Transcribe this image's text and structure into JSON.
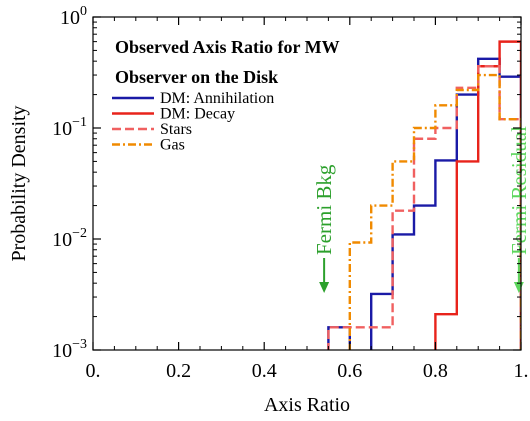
{
  "chart_data": {
    "type": "step-histogram",
    "title_lines": [
      "Observed Axis Ratio for MW",
      "Observer on the Disk"
    ],
    "xlabel": "Axis Ratio",
    "ylabel": "Probability Density",
    "xlim": [
      0,
      1
    ],
    "ylim": [
      0.001,
      1
    ],
    "yscale": "log",
    "grid": false,
    "legend_position": "top-left",
    "x_ticks": [
      {
        "value": 0,
        "label": "0."
      },
      {
        "value": 0.2,
        "label": "0.2"
      },
      {
        "value": 0.4,
        "label": "0.4"
      },
      {
        "value": 0.6,
        "label": "0.6"
      },
      {
        "value": 0.8,
        "label": "0.8"
      },
      {
        "value": 1,
        "label": "1."
      }
    ],
    "y_ticks": [
      {
        "value": 0.001,
        "base": "10",
        "exp": "−3"
      },
      {
        "value": 0.01,
        "base": "10",
        "exp": "−2"
      },
      {
        "value": 0.1,
        "base": "10",
        "exp": "−1"
      },
      {
        "value": 1,
        "base": "10",
        "exp": "0"
      }
    ],
    "series": [
      {
        "name": "DM: Annihilation",
        "color": "#1a1aa6",
        "dash": "solid",
        "bins": [
          {
            "x0": 0.55,
            "x1": 0.6,
            "y": 0.0016
          },
          {
            "x0": 0.65,
            "x1": 0.7,
            "y": 0.0032
          },
          {
            "x0": 0.7,
            "x1": 0.75,
            "y": 0.011
          },
          {
            "x0": 0.75,
            "x1": 0.8,
            "y": 0.02
          },
          {
            "x0": 0.8,
            "x1": 0.85,
            "y": 0.051
          },
          {
            "x0": 0.85,
            "x1": 0.9,
            "y": 0.2
          },
          {
            "x0": 0.9,
            "x1": 0.95,
            "y": 0.42
          },
          {
            "x0": 0.95,
            "x1": 1.0,
            "y": 0.29
          }
        ]
      },
      {
        "name": "DM: Decay",
        "color": "#e8231b",
        "dash": "solid",
        "bins": [
          {
            "x0": 0.8,
            "x1": 0.85,
            "y": 0.0021
          },
          {
            "x0": 0.85,
            "x1": 0.9,
            "y": 0.05
          },
          {
            "x0": 0.9,
            "x1": 0.95,
            "y": 0.36
          },
          {
            "x0": 0.95,
            "x1": 1.0,
            "y": 0.6
          }
        ]
      },
      {
        "name": "Stars",
        "color": "#f06060",
        "dash": "dashed",
        "bins": [
          {
            "x0": 0.55,
            "x1": 0.7,
            "y": 0.0016
          },
          {
            "x0": 0.7,
            "x1": 0.75,
            "y": 0.018
          },
          {
            "x0": 0.75,
            "x1": 0.8,
            "y": 0.08
          },
          {
            "x0": 0.8,
            "x1": 0.85,
            "y": 0.1
          },
          {
            "x0": 0.85,
            "x1": 0.9,
            "y": 0.23
          },
          {
            "x0": 0.9,
            "x1": 0.95,
            "y": 0.36
          },
          {
            "x0": 0.95,
            "x1": 1.0,
            "y": 0.12
          }
        ]
      },
      {
        "name": "Gas",
        "color": "#f08a00",
        "dash": "dashdot",
        "bins": [
          {
            "x0": 0.6,
            "x1": 0.65,
            "y": 0.0093
          },
          {
            "x0": 0.65,
            "x1": 0.7,
            "y": 0.02
          },
          {
            "x0": 0.7,
            "x1": 0.75,
            "y": 0.05
          },
          {
            "x0": 0.75,
            "x1": 0.8,
            "y": 0.1
          },
          {
            "x0": 0.8,
            "x1": 0.85,
            "y": 0.16
          },
          {
            "x0": 0.85,
            "x1": 0.9,
            "y": 0.22
          },
          {
            "x0": 0.9,
            "x1": 0.95,
            "y": 0.3
          },
          {
            "x0": 0.95,
            "x1": 1.0,
            "y": 0.12
          }
        ]
      }
    ],
    "annotations": [
      {
        "text": "Fermi Bkg",
        "x": 0.54,
        "color": "#2ca02c",
        "arrow": "down"
      },
      {
        "text": "Fermi Residual",
        "x": 0.995,
        "color": "#5cd65c",
        "arrow": "down"
      }
    ]
  }
}
